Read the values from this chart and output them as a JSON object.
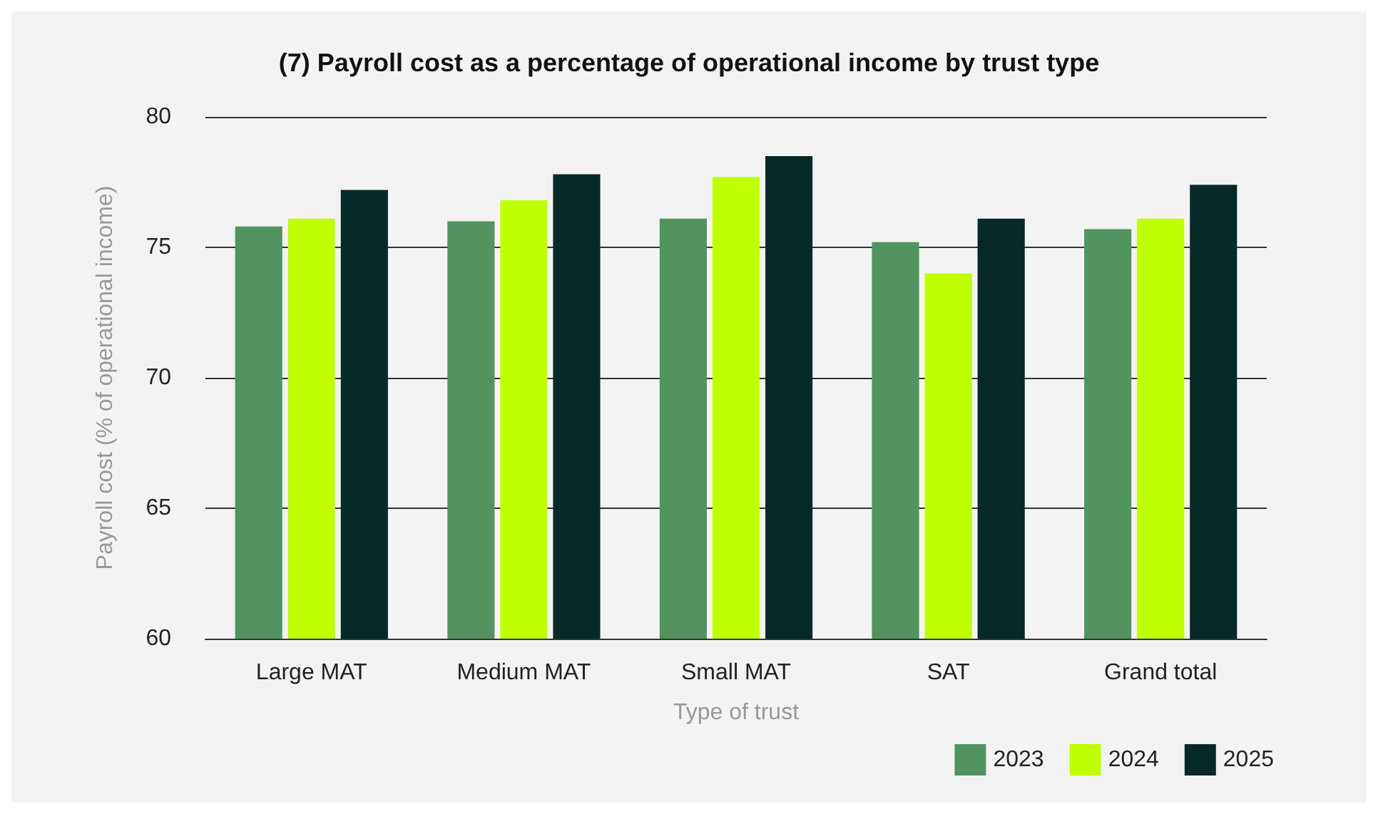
{
  "chart_data": {
    "type": "bar",
    "title": "(7) Payroll cost as a percentage of operational income by trust type",
    "xlabel": "Type of trust",
    "ylabel": "Payroll cost (% of operational income)",
    "categories": [
      "Large MAT",
      "Medium MAT",
      "Small MAT",
      "SAT",
      "Grand total"
    ],
    "series": [
      {
        "name": "2023",
        "color": "#53935f",
        "values": [
          75.8,
          76.0,
          76.1,
          75.2,
          75.7
        ]
      },
      {
        "name": "2024",
        "color": "#bfff00",
        "values": [
          76.1,
          76.8,
          77.7,
          74.0,
          76.1
        ]
      },
      {
        "name": "2025",
        "color": "#072a28",
        "values": [
          77.2,
          77.8,
          78.5,
          76.1,
          77.4
        ]
      }
    ],
    "ylim": [
      60,
      80
    ],
    "yticks": [
      60,
      65,
      70,
      75,
      80
    ],
    "grid": "y",
    "legend": "bottom right"
  }
}
